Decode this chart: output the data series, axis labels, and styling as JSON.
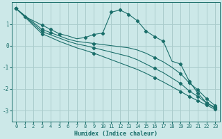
{
  "xlabel": "Humidex (Indice chaleur)",
  "bg_color": "#cce8e8",
  "grid_color": "#aacccc",
  "line_color": "#1a6e6a",
  "xlim": [
    -0.5,
    23.5
  ],
  "ylim": [
    -3.5,
    2.0
  ],
  "xticks": [
    0,
    1,
    2,
    3,
    4,
    5,
    6,
    7,
    8,
    9,
    10,
    11,
    12,
    13,
    14,
    15,
    16,
    17,
    18,
    19,
    20,
    21,
    22,
    23
  ],
  "yticks": [
    -3,
    -2,
    -1,
    0,
    1
  ],
  "lines": [
    {
      "x": [
        0,
        1,
        3,
        4,
        5,
        6,
        7,
        8,
        9,
        10,
        11,
        12,
        13,
        14,
        15,
        16,
        17,
        18,
        19,
        20,
        21,
        22,
        23
      ],
      "y": [
        1.72,
        1.35,
        0.95,
        0.75,
        0.55,
        0.45,
        0.32,
        0.38,
        0.52,
        0.58,
        1.55,
        1.65,
        1.45,
        1.15,
        0.68,
        0.42,
        0.2,
        -0.72,
        -0.85,
        -1.65,
        -2.2,
        -2.65,
        -2.85
      ],
      "marker_x": [
        0,
        1,
        3,
        4,
        5,
        8,
        9,
        10,
        11,
        12,
        13,
        14,
        15,
        16,
        17,
        19,
        20,
        21,
        22,
        23
      ],
      "marker_y": [
        1.72,
        1.35,
        0.95,
        0.75,
        0.55,
        0.38,
        0.52,
        0.58,
        1.55,
        1.65,
        1.45,
        1.15,
        0.68,
        0.42,
        0.2,
        -0.85,
        -1.65,
        -2.2,
        -2.65,
        -2.85
      ]
    },
    {
      "x": [
        0,
        3,
        4,
        5,
        6,
        7,
        8,
        9,
        10,
        11,
        12,
        13,
        14,
        15,
        16,
        17,
        18,
        19,
        20,
        21,
        22,
        23
      ],
      "y": [
        1.72,
        0.75,
        0.6,
        0.45,
        0.3,
        0.2,
        0.15,
        0.1,
        0.05,
        0.0,
        -0.05,
        -0.1,
        -0.2,
        -0.35,
        -0.55,
        -0.75,
        -1.0,
        -1.3,
        -1.72,
        -2.05,
        -2.45,
        -2.78
      ],
      "marker_x": [
        0,
        3,
        4,
        9,
        16,
        19,
        20,
        21,
        22,
        23
      ],
      "marker_y": [
        1.72,
        0.75,
        0.6,
        0.1,
        -0.55,
        -1.3,
        -1.72,
        -2.05,
        -2.45,
        -2.78
      ]
    },
    {
      "x": [
        0,
        3,
        4,
        5,
        6,
        7,
        8,
        9,
        10,
        11,
        12,
        13,
        14,
        15,
        16,
        17,
        18,
        19,
        20,
        21,
        22,
        23
      ],
      "y": [
        1.72,
        0.65,
        0.5,
        0.35,
        0.2,
        0.08,
        0.0,
        -0.1,
        -0.2,
        -0.3,
        -0.4,
        -0.5,
        -0.65,
        -0.85,
        -1.05,
        -1.25,
        -1.5,
        -1.75,
        -2.1,
        -2.35,
        -2.65,
        -2.9
      ],
      "marker_x": [
        0,
        3,
        9,
        16,
        19,
        20,
        21,
        22,
        23
      ],
      "marker_y": [
        1.72,
        0.65,
        -0.1,
        -1.05,
        -1.75,
        -2.1,
        -2.35,
        -2.65,
        -2.9
      ]
    },
    {
      "x": [
        0,
        3,
        4,
        5,
        6,
        7,
        8,
        9,
        10,
        11,
        12,
        13,
        14,
        15,
        16,
        17,
        18,
        19,
        20,
        21,
        22,
        23
      ],
      "y": [
        1.72,
        0.55,
        0.38,
        0.2,
        0.05,
        -0.1,
        -0.22,
        -0.35,
        -0.5,
        -0.65,
        -0.8,
        -0.95,
        -1.1,
        -1.28,
        -1.48,
        -1.68,
        -1.9,
        -2.12,
        -2.35,
        -2.55,
        -2.75,
        -2.95
      ],
      "marker_x": [
        0,
        3,
        9,
        16,
        19,
        20,
        21,
        22,
        23
      ],
      "marker_y": [
        1.72,
        0.55,
        -0.35,
        -1.48,
        -2.12,
        -2.35,
        -2.55,
        -2.75,
        -2.95
      ]
    }
  ]
}
